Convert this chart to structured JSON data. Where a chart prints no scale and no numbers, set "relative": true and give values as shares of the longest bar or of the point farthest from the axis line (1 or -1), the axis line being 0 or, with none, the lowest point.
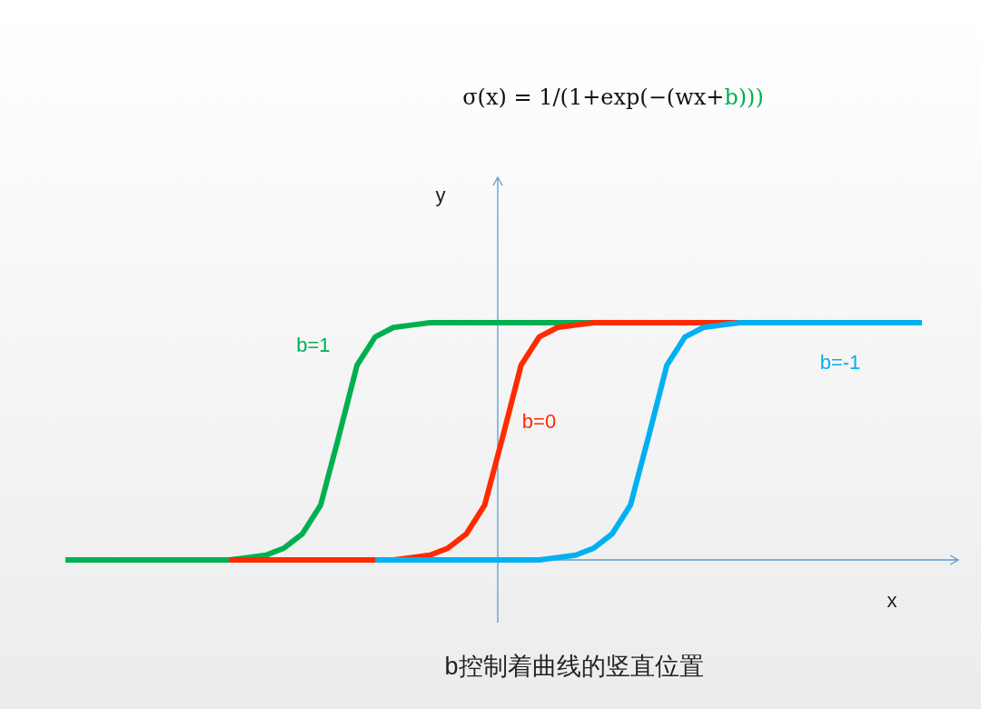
{
  "chart_data": {
    "type": "line",
    "title": "σ(x) = 1/(1+exp(−(wx+b)))",
    "xlabel": "x",
    "relative": true,
    "legend": false,
    "marker": "none",
    "line_style": "solid",
    "annotations": [
      "y",
      "b控制着曲线的竖直位置"
    ],
    "categories": [
      null,
      null,
      null,
      null,
      null,
      null,
      null,
      null,
      null,
      null,
      null,
      null,
      null,
      null,
      null,
      null,
      null,
      null,
      null,
      null,
      null,
      null,
      null,
      null,
      null,
      null,
      null,
      null,
      null,
      null,
      null,
      null,
      null,
      null,
      null,
      null,
      null,
      null,
      null,
      null,
      null,
      null,
      null,
      null,
      null,
      null,
      null,
      null
    ],
    "series": [
      {
        "name": "b=1",
        "color": "#00b050",
        "values": [
          0,
          0,
          0,
          0,
          0,
          0,
          0,
          0,
          0,
          0,
          0.01,
          0.02,
          0.05,
          0.11,
          0.23,
          0.52,
          0.82,
          0.94,
          0.98,
          0.99,
          1,
          1,
          1,
          1,
          1,
          1,
          1,
          1,
          1,
          1,
          null,
          null,
          null,
          null,
          null,
          null,
          null,
          null,
          null,
          null,
          null,
          null,
          null,
          null,
          null,
          null,
          null,
          null
        ]
      },
      {
        "name": "b=0",
        "color": "#ff2a00",
        "values": [
          null,
          null,
          null,
          null,
          null,
          null,
          null,
          null,
          null,
          0,
          0,
          0,
          0,
          0,
          0,
          0,
          0,
          0,
          0,
          0.01,
          0.02,
          0.05,
          0.11,
          0.23,
          0.52,
          0.82,
          0.94,
          0.98,
          0.99,
          1,
          1,
          1,
          1,
          1,
          1,
          1,
          1,
          1,
          null,
          null,
          null,
          null,
          null,
          null,
          null,
          null,
          null,
          null
        ]
      },
      {
        "name": "b=-1",
        "color": "#00b0f0",
        "values": [
          null,
          null,
          null,
          null,
          null,
          null,
          null,
          null,
          null,
          null,
          null,
          null,
          null,
          null,
          null,
          null,
          null,
          0,
          0,
          0,
          0,
          0,
          0,
          0,
          0,
          0,
          0,
          0.01,
          0.02,
          0.05,
          0.11,
          0.23,
          0.52,
          0.82,
          0.94,
          0.98,
          0.99,
          1,
          1,
          1,
          1,
          1,
          1,
          1,
          1,
          1,
          1,
          1
        ]
      }
    ]
  }
}
